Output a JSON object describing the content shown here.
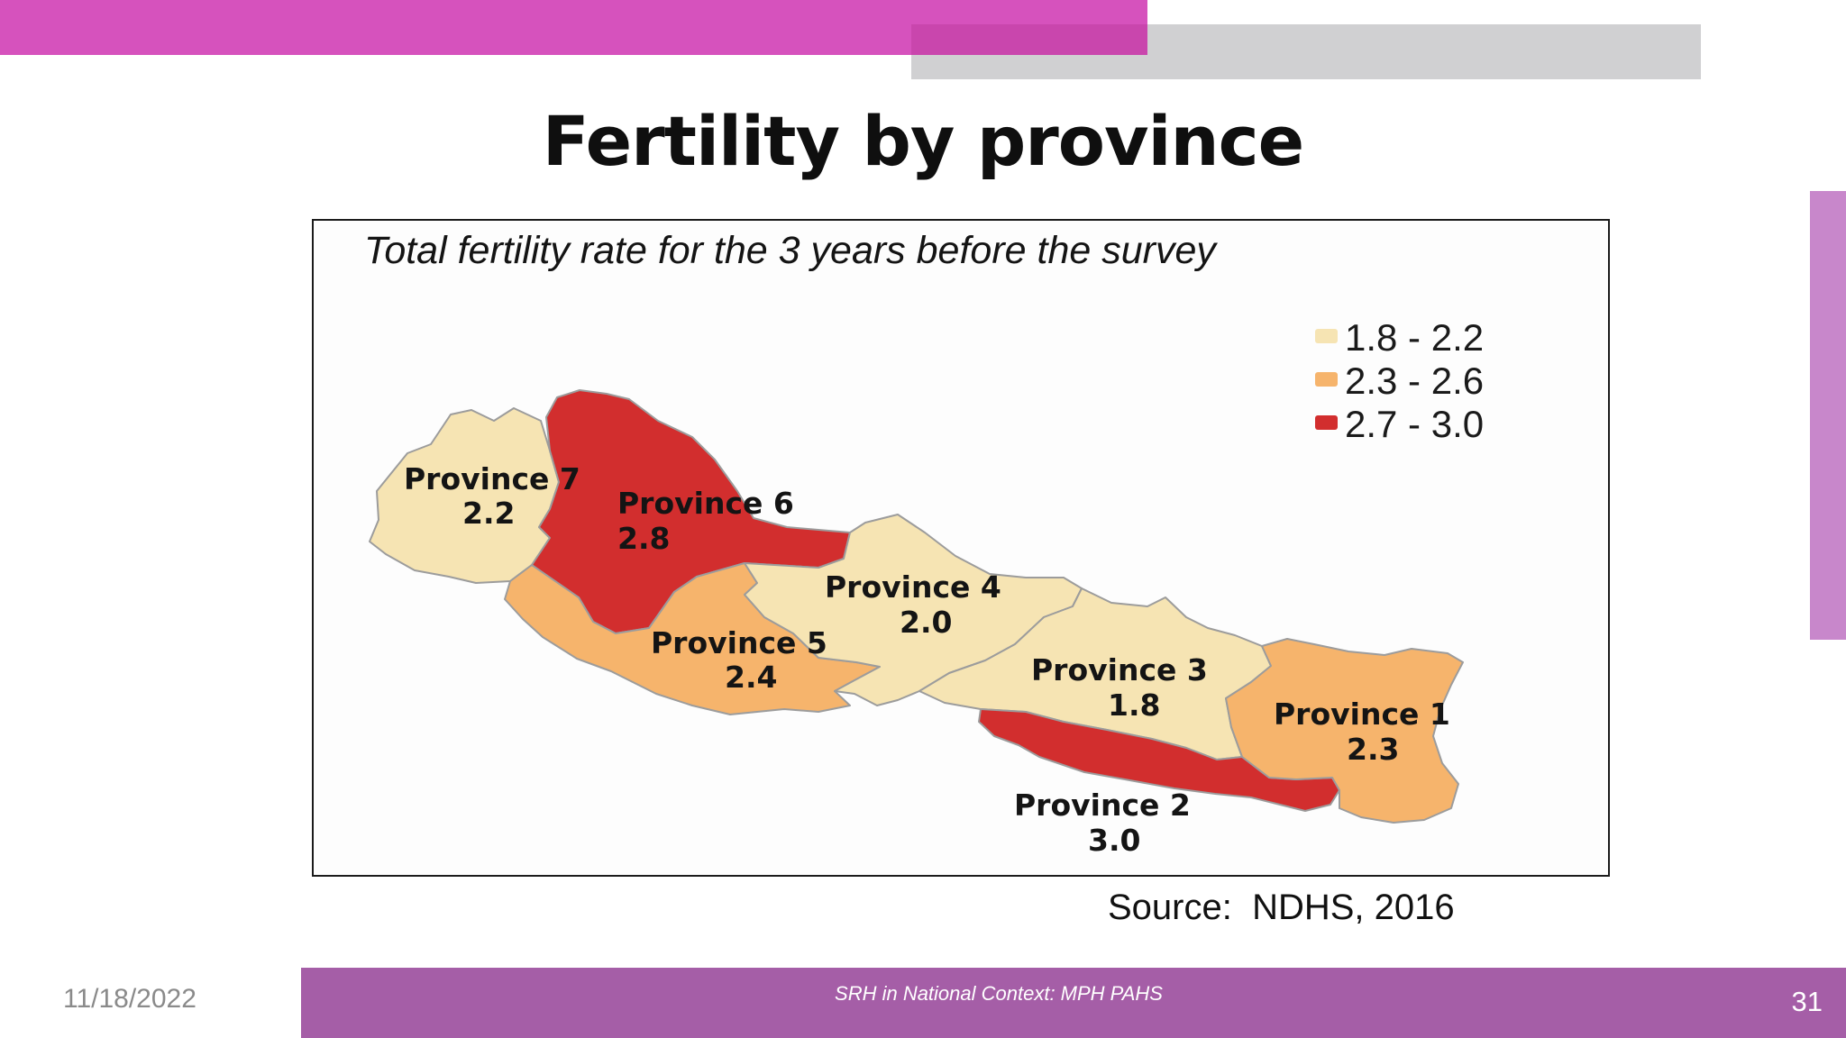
{
  "slide": {
    "title": "Fertility by province",
    "source": "Source:  NDHS, 2016",
    "footer": "SRH in National Context: MPH PAHS",
    "page_number": "31",
    "date": "11/18/2022"
  },
  "map": {
    "title": "Total fertility rate for the 3 years before the survey",
    "legend": [
      {
        "label": "1.8 - 2.2",
        "color": "#f6e4b3"
      },
      {
        "label": "2.3 - 2.6",
        "color": "#f6b46c"
      },
      {
        "label": "2.7 - 3.0",
        "color": "#d22e2e"
      }
    ],
    "provinces": [
      {
        "name": "Province 7",
        "value": "2.2",
        "color": "#f6e4b3"
      },
      {
        "name": "Province 6",
        "value": "2.8",
        "color": "#d22e2e"
      },
      {
        "name": "Province 5",
        "value": "2.4",
        "color": "#f6b46c"
      },
      {
        "name": "Province 4",
        "value": "2.0",
        "color": "#f6e4b3"
      },
      {
        "name": "Province 3",
        "value": "1.8",
        "color": "#f6e4b3"
      },
      {
        "name": "Province 2",
        "value": "3.0",
        "color": "#d22e2e"
      },
      {
        "name": "Province 1",
        "value": "2.3",
        "color": "#f6b46c"
      }
    ]
  }
}
